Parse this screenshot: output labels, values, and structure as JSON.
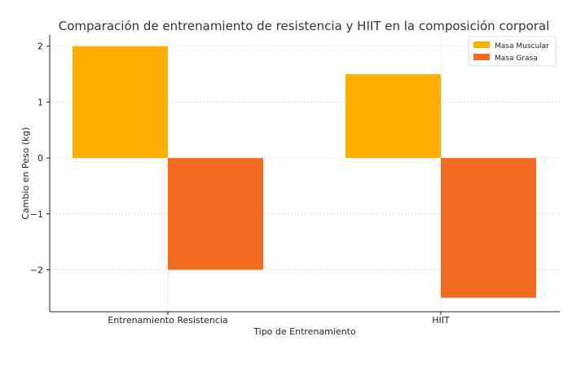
{
  "chart_data": {
    "type": "bar",
    "title": "Comparación de entrenamiento de resistencia y HIIT en la composición corporal",
    "xlabel": "Tipo de Entrenamiento",
    "ylabel": "Cambio en Peso (kg)",
    "categories": [
      "Entrenamiento Resistencia",
      "HIIT"
    ],
    "series": [
      {
        "name": "Masa Muscular",
        "values": [
          2.0,
          1.5
        ],
        "color": "#FFAE00"
      },
      {
        "name": "Masa Grasa",
        "values": [
          -2.0,
          -2.5
        ],
        "color": "#F26B21"
      }
    ],
    "ylim": [
      -2.75,
      2.2
    ],
    "yticks": [
      2,
      1,
      0,
      -1,
      -2
    ],
    "ytick_labels": [
      "2",
      "1",
      "0",
      "−1",
      "−2"
    ],
    "grid": true,
    "legend_position": "top-right"
  }
}
